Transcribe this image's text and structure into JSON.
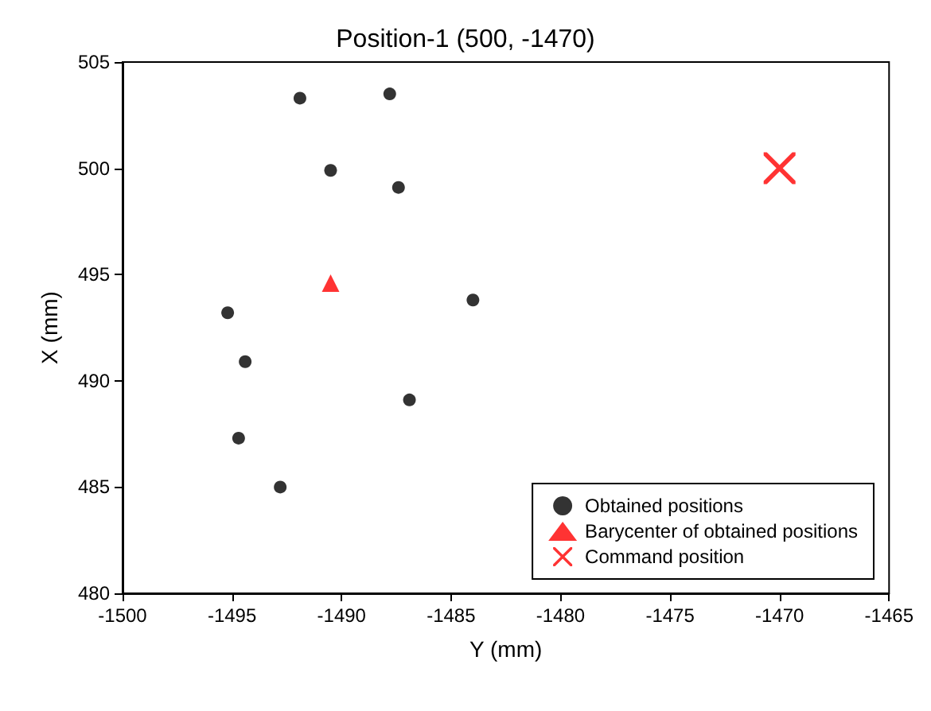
{
  "chart_data": {
    "type": "scatter",
    "title": "Position-1 (500, -1470)",
    "xlabel": "Y (mm)",
    "ylabel": "X (mm)",
    "xlim": [
      -1500,
      -1465
    ],
    "xticks": [
      -1500,
      -1495,
      -1490,
      -1485,
      -1480,
      -1475,
      -1470,
      -1465
    ],
    "ylim": [
      480,
      505
    ],
    "yticks": [
      480,
      485,
      490,
      495,
      500,
      505
    ],
    "grid": false,
    "legend": "bottom right",
    "series": [
      {
        "name": "Obtained positions",
        "color": "#000000",
        "marker": "circle",
        "x": [
          -1491.9,
          -1487.8,
          -1490.5,
          -1487.4,
          -1495.2,
          -1484.0,
          -1494.4,
          -1486.9,
          -1494.7,
          -1492.8
        ],
        "values": [
          503.3,
          503.5,
          499.9,
          499.1,
          493.2,
          493.8,
          490.9,
          489.1,
          487.3,
          485.0
        ]
      },
      {
        "name": "Barycenter of obtained positions",
        "color": "#ff0000",
        "marker": "triangle",
        "x": [
          -1490.5
        ],
        "values": [
          494.6
        ]
      },
      {
        "name": "Command position",
        "color": "#ff0000",
        "marker": "cross",
        "x": [
          -1470
        ],
        "values": [
          500
        ]
      }
    ]
  }
}
